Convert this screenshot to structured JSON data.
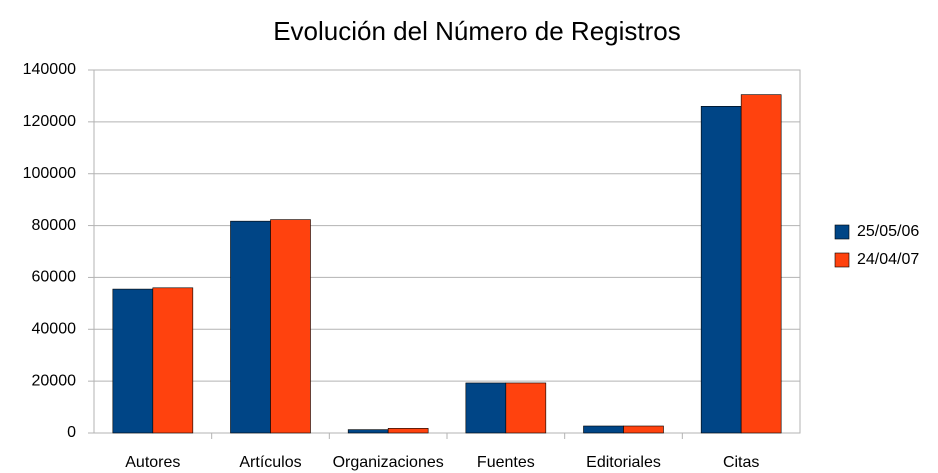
{
  "chart_data": {
    "type": "bar",
    "title": "Evolución del Número de Registros",
    "categories": [
      "Autores",
      "Artículos",
      "Organizaciones",
      "Fuentes",
      "Editoriales",
      "Citas"
    ],
    "series": [
      {
        "name": "25/05/06",
        "color": "#004586",
        "values": [
          55500,
          81700,
          1300,
          19300,
          2700,
          126000
        ]
      },
      {
        "name": "24/04/07",
        "color": "#ff420e",
        "values": [
          56000,
          82300,
          1800,
          19300,
          2700,
          130500
        ]
      }
    ],
    "ylim": [
      0,
      140000
    ],
    "yticks": [
      0,
      20000,
      40000,
      60000,
      80000,
      100000,
      120000,
      140000
    ],
    "grid": true,
    "legend": "right"
  }
}
